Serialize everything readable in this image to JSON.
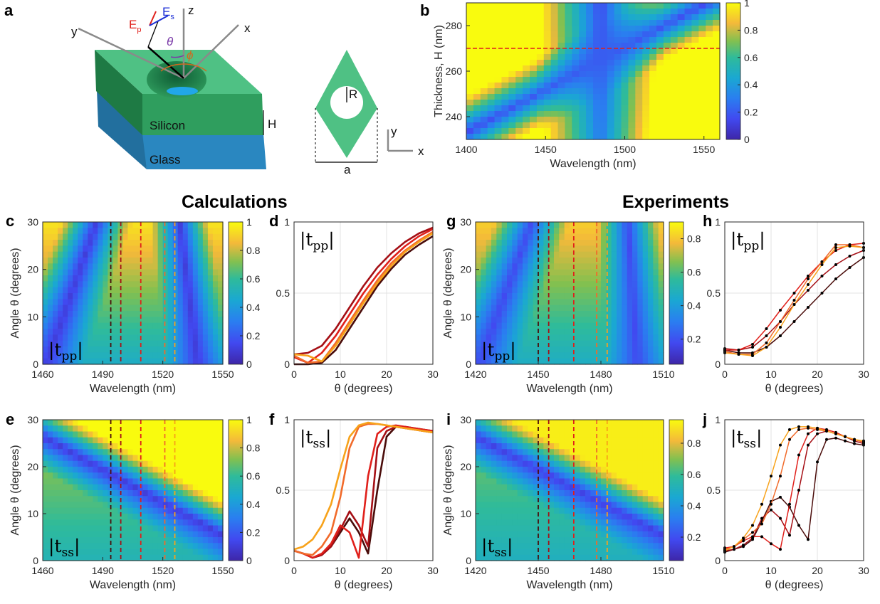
{
  "figure": {
    "headings": {
      "calc": "Calculations",
      "exp": "Experiments"
    },
    "panel_letters": [
      "a",
      "b",
      "c",
      "d",
      "e",
      "f",
      "g",
      "h",
      "i",
      "j"
    ],
    "schematic": {
      "labels": {
        "silicon": "Silicon",
        "glass": "Glass",
        "H": "H",
        "R": "R",
        "a": "a",
        "x": "x",
        "y": "y",
        "z": "z",
        "Ep": "E",
        "Ep_sub": "p",
        "Es": "E",
        "Es_sub": "s",
        "theta": "θ",
        "phi": "ϕ"
      }
    },
    "colors": {
      "parula_low": "#3e26a8",
      "parula_mid": "#21b6a5",
      "parula_high": "#f9fb0e",
      "silicon": "#2f9e5e",
      "glass": "#2a87c0",
      "cut_line": "#e0201b"
    },
    "line_colors": [
      "#4a0c0a",
      "#a50f15",
      "#e0201b",
      "#f16a2a",
      "#f7a21a"
    ]
  },
  "chart_data": [
    {
      "id": "b",
      "type": "heatmap",
      "xlabel": "Wavelength (nm)",
      "ylabel": "Thickness, H (nm)",
      "xlim": [
        1400,
        1560
      ],
      "ylim": [
        230,
        290
      ],
      "xticks": [
        1400,
        1450,
        1500,
        1550
      ],
      "yticks": [
        240,
        260,
        280
      ],
      "colorbar": {
        "min": 0,
        "max": 1,
        "ticks": [
          0,
          0.2,
          0.4,
          0.6,
          0.8,
          1
        ]
      },
      "annotations": {
        "horizontal_line_H": 270
      }
    },
    {
      "id": "c",
      "type": "heatmap",
      "label": "|t_pp|",
      "xlabel": "Wavelength (nm)",
      "ylabel": "Angle θ (degrees)",
      "xlim": [
        1460,
        1550
      ],
      "ylim": [
        0,
        30
      ],
      "xticks": [
        1460,
        1490,
        1520,
        1550
      ],
      "yticks": [
        0,
        10,
        20,
        30
      ],
      "colorbar": {
        "min": 0,
        "max": 1,
        "ticks": [
          0,
          0.2,
          0.4,
          0.6,
          0.8,
          1
        ]
      },
      "dashed_lines_wavelength": [
        1494,
        1499,
        1509,
        1521,
        1526
      ]
    },
    {
      "id": "d",
      "type": "line",
      "label": "|t_pp|",
      "xlabel": "θ (degrees)",
      "xlim": [
        0,
        30
      ],
      "ylim": [
        0,
        1
      ],
      "xticks": [
        0,
        10,
        20,
        30
      ],
      "yticks": [
        0,
        0.5,
        1
      ],
      "grid": true,
      "x": [
        0,
        3,
        6,
        9,
        12,
        15,
        18,
        21,
        24,
        27,
        30
      ],
      "series": [
        {
          "values": [
            0,
            0,
            0.01,
            0.1,
            0.25,
            0.4,
            0.55,
            0.67,
            0.77,
            0.84,
            0.9
          ]
        },
        {
          "values": [
            0.07,
            0.08,
            0.13,
            0.25,
            0.4,
            0.55,
            0.68,
            0.78,
            0.86,
            0.92,
            0.96
          ]
        },
        {
          "values": [
            0.05,
            0.01,
            0.08,
            0.2,
            0.35,
            0.5,
            0.63,
            0.74,
            0.83,
            0.9,
            0.95
          ]
        },
        {
          "values": [
            0.06,
            0.01,
            0.02,
            0.15,
            0.3,
            0.45,
            0.59,
            0.71,
            0.8,
            0.87,
            0.93
          ]
        },
        {
          "values": [
            0.07,
            0.06,
            0.02,
            0.13,
            0.28,
            0.43,
            0.57,
            0.69,
            0.79,
            0.86,
            0.92
          ]
        }
      ]
    },
    {
      "id": "e",
      "type": "heatmap",
      "label": "|t_ss|",
      "xlabel": "Wavelength (nm)",
      "ylabel": "Angle θ (degrees)",
      "xlim": [
        1460,
        1550
      ],
      "ylim": [
        0,
        30
      ],
      "xticks": [
        1460,
        1490,
        1520,
        1550
      ],
      "yticks": [
        0,
        10,
        20,
        30
      ],
      "colorbar": {
        "min": 0,
        "max": 1,
        "ticks": [
          0,
          0.2,
          0.4,
          0.6,
          0.8,
          1
        ]
      },
      "dashed_lines_wavelength": [
        1494,
        1499,
        1509,
        1521,
        1526
      ]
    },
    {
      "id": "f",
      "type": "line",
      "label": "|t_ss|",
      "xlabel": "θ (degrees)",
      "xlim": [
        0,
        30
      ],
      "ylim": [
        0,
        1
      ],
      "xticks": [
        0,
        10,
        20,
        30
      ],
      "yticks": [
        0,
        0.5,
        1
      ],
      "grid": true,
      "x": [
        0,
        2,
        4,
        6,
        8,
        10,
        12,
        14,
        16,
        18,
        20,
        22,
        24,
        26,
        28,
        30
      ],
      "series": [
        {
          "values": [
            0.07,
            0.05,
            0.02,
            0.04,
            0.1,
            0.2,
            0.3,
            0.2,
            0.05,
            0.5,
            0.88,
            0.95,
            0.95,
            0.94,
            0.93,
            0.92
          ]
        },
        {
          "values": [
            0.07,
            0.05,
            0.02,
            0.04,
            0.1,
            0.22,
            0.35,
            0.25,
            0.1,
            0.8,
            0.92,
            0.95,
            0.94,
            0.93,
            0.92,
            0.91
          ]
        },
        {
          "values": [
            0.07,
            0.05,
            0.02,
            0.05,
            0.12,
            0.25,
            0.2,
            0.02,
            0.6,
            0.9,
            0.95,
            0.96,
            0.95,
            0.94,
            0.93,
            0.92
          ]
        },
        {
          "values": [
            0.07,
            0.05,
            0.04,
            0.1,
            0.2,
            0.45,
            0.8,
            0.95,
            0.97,
            0.97,
            0.96,
            0.95,
            0.94,
            0.93,
            0.92,
            0.91
          ]
        },
        {
          "values": [
            0.08,
            0.1,
            0.15,
            0.25,
            0.4,
            0.65,
            0.88,
            0.96,
            0.98,
            0.97,
            0.96,
            0.95,
            0.94,
            0.93,
            0.92,
            0.91
          ]
        }
      ]
    },
    {
      "id": "g",
      "type": "heatmap",
      "label": "|t_pp|",
      "xlabel": "Wavelength (nm)",
      "ylabel": "Angle θ (degrees)",
      "xlim": [
        1420,
        1510
      ],
      "ylim": [
        0,
        30
      ],
      "xticks": [
        1420,
        1450,
        1480,
        1510
      ],
      "yticks": [
        0,
        10,
        20,
        30
      ],
      "colorbar": {
        "min": 0.05,
        "max": 0.9,
        "ticks": [
          0.2,
          0.4,
          0.6,
          0.8
        ]
      },
      "dashed_lines_wavelength": [
        1450,
        1455,
        1467,
        1478,
        1483
      ]
    },
    {
      "id": "h",
      "type": "line",
      "label": "|t_pp|",
      "xlabel": "θ (degrees)",
      "xlim": [
        0,
        30
      ],
      "ylim": [
        0,
        1
      ],
      "xticks": [
        0,
        10,
        20,
        30
      ],
      "yticks": [
        0,
        0.5,
        1
      ],
      "grid": true,
      "x": [
        0,
        3,
        6,
        9,
        12,
        15,
        18,
        21,
        24,
        27,
        30
      ],
      "series": [
        {
          "values": [
            0.1,
            0.08,
            0.08,
            0.12,
            0.2,
            0.3,
            0.4,
            0.5,
            0.6,
            0.68,
            0.75
          ]
        },
        {
          "values": [
            0.11,
            0.1,
            0.12,
            0.2,
            0.3,
            0.42,
            0.52,
            0.62,
            0.7,
            0.76,
            0.8
          ]
        },
        {
          "values": [
            0.1,
            0.1,
            0.14,
            0.25,
            0.38,
            0.5,
            0.62,
            0.72,
            0.8,
            0.84,
            0.85
          ]
        },
        {
          "values": [
            0.09,
            0.07,
            0.07,
            0.15,
            0.3,
            0.45,
            0.6,
            0.72,
            0.84,
            0.84,
            0.82
          ]
        },
        {
          "values": [
            0.08,
            0.07,
            0.06,
            0.12,
            0.26,
            0.42,
            0.56,
            0.7,
            0.82,
            0.83,
            0.82
          ]
        }
      ]
    },
    {
      "id": "i",
      "type": "heatmap",
      "label": "|t_ss|",
      "xlabel": "Wavelength (nm)",
      "ylabel": "Angle θ (degrees)",
      "xlim": [
        1420,
        1510
      ],
      "ylim": [
        0,
        30
      ],
      "xticks": [
        1420,
        1450,
        1480,
        1510
      ],
      "yticks": [
        0,
        10,
        20,
        30
      ],
      "colorbar": {
        "min": 0.05,
        "max": 0.95,
        "ticks": [
          0.2,
          0.4,
          0.6,
          0.8
        ]
      },
      "dashed_lines_wavelength": [
        1450,
        1455,
        1467,
        1478,
        1483
      ]
    },
    {
      "id": "j",
      "type": "line",
      "label": "|t_ss|",
      "xlabel": "θ (degrees)",
      "xlim": [
        0,
        30
      ],
      "ylim": [
        0,
        1
      ],
      "xticks": [
        0,
        10,
        20,
        30
      ],
      "yticks": [
        0,
        0.5,
        1
      ],
      "grid": true,
      "x": [
        0,
        2,
        4,
        6,
        8,
        10,
        12,
        14,
        16,
        18,
        20,
        22,
        24,
        26,
        28,
        30
      ],
      "series": [
        {
          "values": [
            0.06,
            0.08,
            0.1,
            0.15,
            0.28,
            0.42,
            0.45,
            0.38,
            0.25,
            0.15,
            0.7,
            0.86,
            0.87,
            0.85,
            0.83,
            0.82
          ]
        },
        {
          "values": [
            0.07,
            0.08,
            0.11,
            0.16,
            0.3,
            0.36,
            0.3,
            0.18,
            0.5,
            0.82,
            0.9,
            0.92,
            0.9,
            0.88,
            0.85,
            0.83
          ]
        },
        {
          "values": [
            0.09,
            0.1,
            0.14,
            0.17,
            0.17,
            0.12,
            0.08,
            0.4,
            0.75,
            0.9,
            0.94,
            0.93,
            0.91,
            0.88,
            0.86,
            0.84
          ]
        },
        {
          "values": [
            0.08,
            0.1,
            0.15,
            0.2,
            0.26,
            0.4,
            0.6,
            0.86,
            0.93,
            0.94,
            0.93,
            0.92,
            0.9,
            0.88,
            0.86,
            0.84
          ]
        },
        {
          "values": [
            0.07,
            0.1,
            0.16,
            0.25,
            0.4,
            0.6,
            0.82,
            0.93,
            0.95,
            0.95,
            0.94,
            0.92,
            0.9,
            0.88,
            0.86,
            0.85
          ]
        }
      ]
    }
  ]
}
